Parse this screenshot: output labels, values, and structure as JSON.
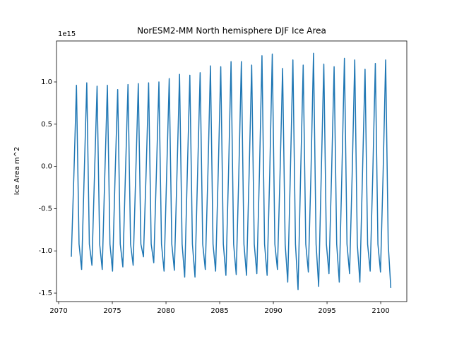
{
  "chart_data": {
    "type": "line",
    "title": "NorESM2-MM North hemisphere DJF Ice Area",
    "ylabel": "Ice Area m^2",
    "y_offset_label": "1e15",
    "x": [
      2071.18,
      2071.42,
      2071.66,
      2071.9,
      2072.14,
      2072.38,
      2072.62,
      2072.86,
      2073.1,
      2073.34,
      2073.58,
      2073.82,
      2074.06,
      2074.3,
      2074.54,
      2074.78,
      2075.02,
      2075.26,
      2075.5,
      2075.74,
      2075.98,
      2076.22,
      2076.46,
      2076.7,
      2076.94,
      2077.18,
      2077.42,
      2077.66,
      2077.9,
      2078.14,
      2078.38,
      2078.62,
      2078.86,
      2079.1,
      2079.34,
      2079.58,
      2079.82,
      2080.06,
      2080.3,
      2080.54,
      2080.78,
      2081.02,
      2081.26,
      2081.5,
      2081.74,
      2081.98,
      2082.22,
      2082.46,
      2082.7,
      2082.94,
      2083.18,
      2083.42,
      2083.66,
      2083.9,
      2084.14,
      2084.38,
      2084.62,
      2084.86,
      2085.1,
      2085.34,
      2085.58,
      2085.82,
      2086.06,
      2086.3,
      2086.54,
      2086.78,
      2087.02,
      2087.26,
      2087.5,
      2087.74,
      2087.98,
      2088.22,
      2088.46,
      2088.7,
      2088.94,
      2089.18,
      2089.42,
      2089.66,
      2089.9,
      2090.14,
      2090.38,
      2090.62,
      2090.86,
      2091.1,
      2091.34,
      2091.58,
      2091.82,
      2092.06,
      2092.3,
      2092.54,
      2092.78,
      2093.02,
      2093.26,
      2093.5,
      2093.74,
      2093.98,
      2094.22,
      2094.46,
      2094.7,
      2094.94,
      2095.18,
      2095.42,
      2095.66,
      2095.9,
      2096.14,
      2096.38,
      2096.62,
      2096.86,
      2097.1,
      2097.34,
      2097.58,
      2097.82,
      2098.06,
      2098.3,
      2098.54,
      2098.78,
      2099.02,
      2099.26,
      2099.5,
      2099.74,
      2099.98,
      2100.22,
      2100.46,
      2100.7,
      2100.94
    ],
    "series": [
      {
        "color": "#1f77b4",
        "values": [
          -1.07,
          -0.1,
          0.96,
          -0.92,
          -1.22,
          -0.1,
          0.99,
          -0.92,
          -1.17,
          -0.1,
          0.95,
          -0.92,
          -1.22,
          -0.1,
          0.96,
          -0.92,
          -1.24,
          -0.1,
          0.91,
          -0.92,
          -1.19,
          -0.1,
          0.97,
          -0.92,
          -1.17,
          -0.1,
          0.98,
          -0.92,
          -1.07,
          -0.1,
          0.99,
          -0.92,
          -1.14,
          -0.1,
          1.0,
          -0.92,
          -1.24,
          -0.1,
          1.04,
          -0.92,
          -1.23,
          -0.1,
          1.09,
          -0.92,
          -1.31,
          -0.1,
          1.08,
          -0.92,
          -1.31,
          -0.1,
          1.11,
          -0.92,
          -1.22,
          -0.1,
          1.19,
          -0.92,
          -1.24,
          -0.1,
          1.18,
          -0.92,
          -1.29,
          -0.1,
          1.24,
          -0.92,
          -1.28,
          -0.1,
          1.24,
          -0.92,
          -1.29,
          -0.1,
          1.2,
          -0.92,
          -1.27,
          -0.1,
          1.31,
          -0.92,
          -1.29,
          -0.1,
          1.33,
          -0.92,
          -1.22,
          -0.1,
          1.16,
          -0.92,
          -1.37,
          -0.1,
          1.26,
          -0.92,
          -1.46,
          -0.1,
          1.2,
          -0.92,
          -1.25,
          -0.1,
          1.34,
          -0.92,
          -1.42,
          -0.1,
          1.21,
          -0.92,
          -1.27,
          -0.1,
          1.18,
          -0.92,
          -1.37,
          -0.1,
          1.28,
          -0.92,
          -1.27,
          -0.1,
          1.26,
          -0.92,
          -1.37,
          -0.1,
          1.15,
          -0.92,
          -1.24,
          -0.1,
          1.22,
          -0.92,
          -1.25,
          -0.1,
          1.26,
          -0.92,
          -1.44
        ]
      }
    ],
    "xlim": [
      2069.8,
      2102.43
    ],
    "ylim": [
      -1.6,
      1.485
    ],
    "xticks": [
      2070,
      2075,
      2080,
      2085,
      2090,
      2095,
      2100
    ],
    "yticks": [
      {
        "value": -1.5,
        "label": "-1.5"
      },
      {
        "value": -1.0,
        "label": "-1.0"
      },
      {
        "value": -0.5,
        "label": "-0.5"
      },
      {
        "value": 0.0,
        "label": "0.0"
      },
      {
        "value": 0.5,
        "label": "0.5"
      },
      {
        "value": 1.0,
        "label": "1.0"
      }
    ],
    "grid": false
  }
}
